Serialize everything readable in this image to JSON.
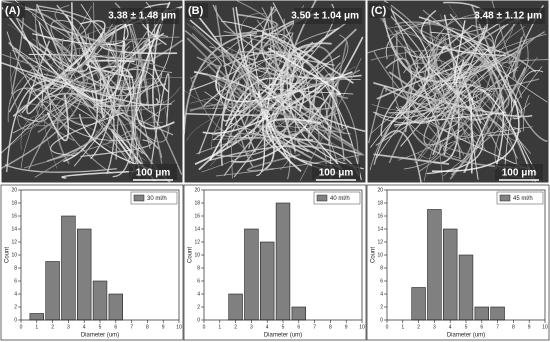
{
  "chart_data": [
    {
      "type": "histogram",
      "panel_label": "(A)",
      "measurement": "3.38 ± 1.48 μm",
      "scale_bar": "100 μm",
      "xlabel": "Diameter (um)",
      "ylabel": "Count",
      "bins": [
        0.5,
        1.5,
        2.5,
        3.5,
        4.5,
        5.5,
        6.5
      ],
      "series": [
        {
          "name": "30 ml/h",
          "color": "#808080",
          "values": [
            1,
            9,
            16,
            14,
            6,
            4
          ]
        }
      ],
      "xlim": [
        0,
        10
      ],
      "xticks": [
        0,
        1,
        2,
        3,
        4,
        5,
        6,
        7,
        8,
        9,
        10
      ],
      "ylim": [
        0,
        20
      ],
      "yticks": [
        0,
        2,
        4,
        6,
        8,
        10,
        12,
        14,
        16,
        18,
        20
      ]
    },
    {
      "type": "histogram",
      "panel_label": "(B)",
      "measurement": "3.50 ± 1.04 μm",
      "scale_bar": "100 μm",
      "xlabel": "Diameter (um)",
      "ylabel": "Count",
      "bins": [
        1.5,
        2.5,
        3.5,
        4.5,
        5.5,
        6.5
      ],
      "series": [
        {
          "name": "40 ml/h",
          "color": "#808080",
          "values": [
            4,
            14,
            12,
            18,
            2
          ]
        }
      ],
      "xlim": [
        0,
        10
      ],
      "xticks": [
        0,
        1,
        2,
        3,
        4,
        5,
        6,
        7,
        8,
        9,
        10
      ],
      "ylim": [
        0,
        20
      ],
      "yticks": [
        0,
        2,
        4,
        6,
        8,
        10,
        12,
        14,
        16,
        18,
        20
      ]
    },
    {
      "type": "histogram",
      "panel_label": "(C)",
      "measurement": "3.48 ± 1.12 μm",
      "scale_bar": "100 μm",
      "xlabel": "Diameter (um)",
      "ylabel": "Count",
      "bins": [
        1.5,
        2.5,
        3.5,
        4.5,
        5.5,
        6.5,
        7.5
      ],
      "series": [
        {
          "name": "45 ml/h",
          "color": "#808080",
          "values": [
            5,
            17,
            14,
            10,
            2,
            2
          ]
        }
      ],
      "xlim": [
        0,
        10
      ],
      "xticks": [
        0,
        1,
        2,
        3,
        4,
        5,
        6,
        7,
        8,
        9,
        10
      ],
      "ylim": [
        0,
        20
      ],
      "yticks": [
        0,
        2,
        4,
        6,
        8,
        10,
        12,
        14,
        16,
        18,
        20
      ]
    }
  ]
}
